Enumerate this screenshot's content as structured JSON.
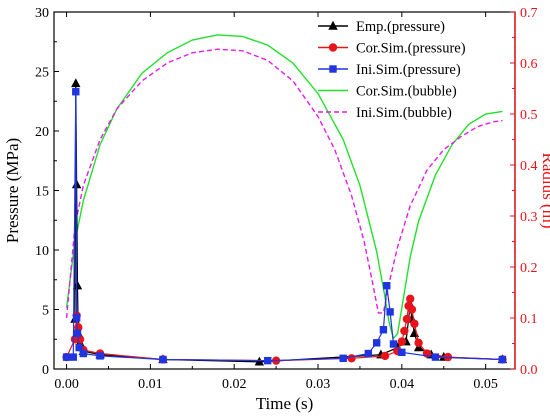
{
  "chart_data": {
    "type": "line",
    "title": "",
    "xlabel": "Time (s)",
    "ylabel": "Pressure (MPa)",
    "y2label": "Radius (m)",
    "xlim": [
      -0.0015,
      0.0535
    ],
    "ylim": [
      0,
      30
    ],
    "y2lim": [
      0,
      0.7
    ],
    "xticks": [
      0.0,
      0.01,
      0.02,
      0.03,
      0.04,
      0.05
    ],
    "xtick_labels": [
      "0.00",
      "0.01",
      "0.02",
      "0.03",
      "0.04",
      "0.05"
    ],
    "yticks": [
      0,
      5,
      10,
      15,
      20,
      25,
      30
    ],
    "ytick_labels": [
      "0",
      "5",
      "10",
      "15",
      "20",
      "25",
      "30"
    ],
    "y2ticks": [
      0.0,
      0.1,
      0.2,
      0.3,
      0.4,
      0.5,
      0.6,
      0.7
    ],
    "y2tick_labels": [
      "0.0",
      "0.1",
      "0.2",
      "0.3",
      "0.4",
      "0.5",
      "0.6",
      "0.7"
    ],
    "grid": false,
    "legend_position": "top-right",
    "colors": {
      "black": "#000000",
      "red": "#e8141b",
      "blue": "#1f35e0",
      "green": "#22e02a",
      "magenta": "#e61be6"
    },
    "series": [
      {
        "name": "Emp.(pressure)",
        "axis": "left",
        "color": "#000000",
        "marker": "triangle",
        "line": "solid",
        "x": [
          0.001,
          0.0011,
          0.0012,
          0.0013,
          0.0014,
          0.0016,
          0.002,
          0.004,
          0.0115,
          0.023,
          0.0375,
          0.0395,
          0.0405,
          0.041,
          0.0412,
          0.0415,
          0.042,
          0.0435,
          0.045,
          0.052
        ],
        "y": [
          4.2,
          24.0,
          15.5,
          7.0,
          3.0,
          2.2,
          1.5,
          1.2,
          0.8,
          0.6,
          1.2,
          1.8,
          2.3,
          5.4,
          4.2,
          3.0,
          1.8,
          1.2,
          1.0,
          0.8
        ]
      },
      {
        "name": "Cor.Sim.(pressure)",
        "axis": "left",
        "color": "#e8141b",
        "marker": "circle",
        "line": "solid",
        "x": [
          0.0,
          0.001,
          0.0012,
          0.0014,
          0.0016,
          0.002,
          0.004,
          0.0115,
          0.025,
          0.034,
          0.038,
          0.0395,
          0.04,
          0.0403,
          0.0406,
          0.0408,
          0.041,
          0.0412,
          0.0415,
          0.042,
          0.043,
          0.0455,
          0.052
        ],
        "y": [
          1.0,
          2.5,
          4.5,
          3.5,
          2.5,
          1.6,
          1.3,
          0.8,
          0.7,
          0.9,
          1.1,
          1.5,
          2.3,
          3.2,
          4.2,
          5.3,
          5.9,
          5.0,
          3.8,
          2.2,
          1.3,
          1.0,
          0.8
        ]
      },
      {
        "name": "Ini.Sim.(pressure)",
        "axis": "left",
        "color": "#1f35e0",
        "marker": "square",
        "line": "solid",
        "x": [
          0.0,
          0.0008,
          0.0011,
          0.0012,
          0.0013,
          0.0015,
          0.002,
          0.004,
          0.0115,
          0.024,
          0.033,
          0.036,
          0.037,
          0.0378,
          0.0382,
          0.0386,
          0.039,
          0.04,
          0.044,
          0.052
        ],
        "y": [
          1.0,
          1.0,
          23.3,
          4.3,
          3.0,
          1.8,
          1.3,
          1.1,
          0.8,
          0.7,
          0.9,
          1.3,
          2.2,
          3.3,
          7.0,
          4.8,
          2.1,
          1.4,
          1.0,
          0.8
        ]
      },
      {
        "name": "Cor.Sim.(bubble)",
        "axis": "right",
        "color": "#22e02a",
        "marker": "none",
        "line": "solid",
        "x": [
          0.0,
          0.001,
          0.002,
          0.004,
          0.006,
          0.009,
          0.012,
          0.015,
          0.018,
          0.021,
          0.024,
          0.027,
          0.03,
          0.033,
          0.035,
          0.037,
          0.038,
          0.0385,
          0.039,
          0.0395,
          0.04,
          0.041,
          0.042,
          0.044,
          0.046,
          0.048,
          0.05,
          0.052
        ],
        "y": [
          0.12,
          0.25,
          0.33,
          0.44,
          0.51,
          0.58,
          0.62,
          0.645,
          0.655,
          0.652,
          0.635,
          0.6,
          0.54,
          0.45,
          0.36,
          0.23,
          0.14,
          0.09,
          0.06,
          0.07,
          0.12,
          0.22,
          0.29,
          0.38,
          0.44,
          0.48,
          0.5,
          0.505
        ]
      },
      {
        "name": "Ini.Sim.(bubble)",
        "axis": "right",
        "color": "#e61be6",
        "marker": "none",
        "line": "dashed",
        "x": [
          0.0,
          0.001,
          0.002,
          0.004,
          0.006,
          0.009,
          0.012,
          0.015,
          0.018,
          0.021,
          0.024,
          0.027,
          0.03,
          0.032,
          0.034,
          0.0355,
          0.0365,
          0.0372,
          0.0378,
          0.0385,
          0.0395,
          0.041,
          0.043,
          0.045,
          0.047,
          0.049,
          0.051,
          0.052
        ],
        "y": [
          0.1,
          0.28,
          0.36,
          0.45,
          0.51,
          0.565,
          0.6,
          0.62,
          0.627,
          0.624,
          0.605,
          0.565,
          0.495,
          0.43,
          0.34,
          0.25,
          0.17,
          0.11,
          0.11,
          0.17,
          0.24,
          0.32,
          0.39,
          0.43,
          0.455,
          0.475,
          0.485,
          0.487
        ]
      }
    ]
  }
}
